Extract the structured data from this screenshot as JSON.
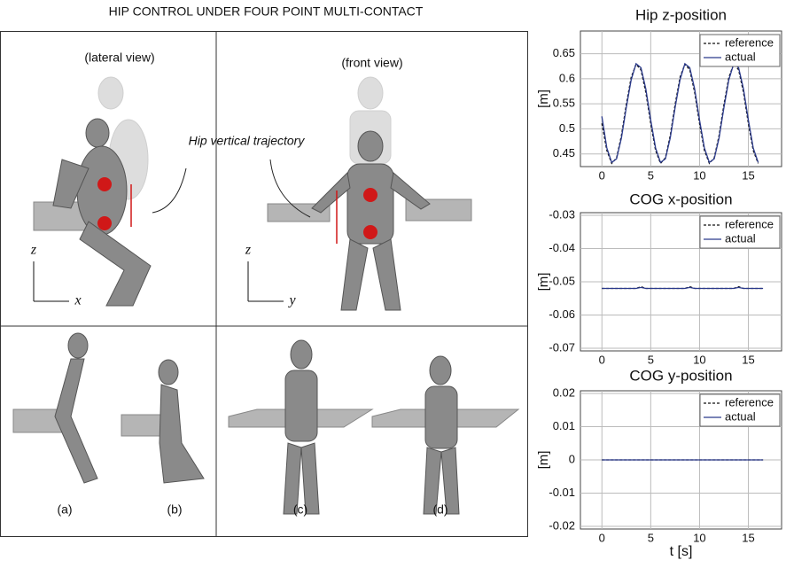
{
  "figure": {
    "title": "HIP CONTROL UNDER FOUR POINT MULTI-CONTACT",
    "views": [
      "(lateral view)",
      "(front view)"
    ],
    "annotation": "Hip vertical trajectory",
    "axes_letters": [
      "z",
      "x",
      "z",
      "y"
    ],
    "panels": [
      "(a)",
      "(b)",
      "(c)",
      "(d)"
    ]
  },
  "chart_data": [
    {
      "type": "line",
      "title": "Hip z-position",
      "ylabel": "[m]",
      "xlim": [
        -2.2,
        18.4
      ],
      "ylim": [
        0.43,
        0.69
      ],
      "xticks": [
        0,
        5,
        10,
        15
      ],
      "yticks": [
        0.45,
        0.5,
        0.55,
        0.6,
        0.65
      ],
      "grid": true,
      "legend": "upper right",
      "x": [
        0,
        0.5,
        1,
        1.5,
        2,
        2.5,
        3,
        3.5,
        4,
        4.5,
        5,
        5.5,
        6,
        6.5,
        7,
        7.5,
        8,
        8.5,
        9,
        9.5,
        10,
        10.5,
        11,
        11.5,
        12,
        12.5,
        13,
        13.5,
        14,
        14.5,
        15,
        15.5,
        16
      ],
      "series": [
        {
          "name": "reference",
          "color": "#111111",
          "dash": true,
          "values": [
            0.511,
            0.457,
            0.431,
            0.442,
            0.487,
            0.549,
            0.603,
            0.629,
            0.618,
            0.573,
            0.511,
            0.457,
            0.431,
            0.442,
            0.487,
            0.549,
            0.603,
            0.629,
            0.618,
            0.573,
            0.511,
            0.457,
            0.431,
            0.442,
            0.487,
            0.549,
            0.603,
            0.629,
            0.618,
            0.573,
            0.511,
            0.457,
            0.431
          ]
        },
        {
          "name": "actual",
          "color": "#2b3a8c",
          "dash": false,
          "values": [
            0.525,
            0.462,
            0.433,
            0.44,
            0.482,
            0.543,
            0.598,
            0.63,
            0.622,
            0.58,
            0.518,
            0.462,
            0.433,
            0.44,
            0.482,
            0.543,
            0.598,
            0.63,
            0.622,
            0.58,
            0.518,
            0.462,
            0.433,
            0.44,
            0.482,
            0.543,
            0.598,
            0.63,
            0.622,
            0.58,
            0.518,
            0.462,
            0.433
          ]
        }
      ]
    },
    {
      "type": "line",
      "title": "COG x-position",
      "ylabel": "[m]",
      "xlim": [
        -2.2,
        18.4
      ],
      "ylim": [
        -0.07,
        -0.03
      ],
      "xticks": [
        0,
        5,
        10,
        15
      ],
      "yticks": [
        -0.03,
        -0.04,
        -0.05,
        -0.06,
        -0.07
      ],
      "grid": true,
      "legend": "upper right",
      "x": [
        0,
        3.5,
        4,
        4.5,
        8.5,
        9,
        9.5,
        13.5,
        14,
        14.5,
        16.5
      ],
      "series": [
        {
          "name": "reference",
          "color": "#111111",
          "dash": true,
          "values": [
            -0.052,
            -0.052,
            -0.0515,
            -0.052,
            -0.052,
            -0.0515,
            -0.052,
            -0.052,
            -0.0515,
            -0.052,
            -0.052
          ]
        },
        {
          "name": "actual",
          "color": "#2b3a8c",
          "dash": false,
          "values": [
            -0.052,
            -0.052,
            -0.0517,
            -0.052,
            -0.052,
            -0.0517,
            -0.052,
            -0.052,
            -0.0517,
            -0.052,
            -0.052
          ]
        }
      ]
    },
    {
      "type": "line",
      "title": "COG y-position",
      "ylabel": "[m]",
      "xlabel": "t [s]",
      "xlim": [
        -2.2,
        18.4
      ],
      "ylim": [
        -0.02,
        0.02
      ],
      "xticks": [
        0,
        5,
        10,
        15
      ],
      "yticks": [
        0.02,
        0.01,
        0,
        -0.01,
        -0.02
      ],
      "grid": true,
      "legend": "upper right",
      "x": [
        0,
        16.5
      ],
      "series": [
        {
          "name": "reference",
          "color": "#111111",
          "dash": true,
          "values": [
            0,
            0
          ]
        },
        {
          "name": "actual",
          "color": "#2b3a8c",
          "dash": false,
          "values": [
            0,
            0
          ]
        }
      ]
    }
  ]
}
